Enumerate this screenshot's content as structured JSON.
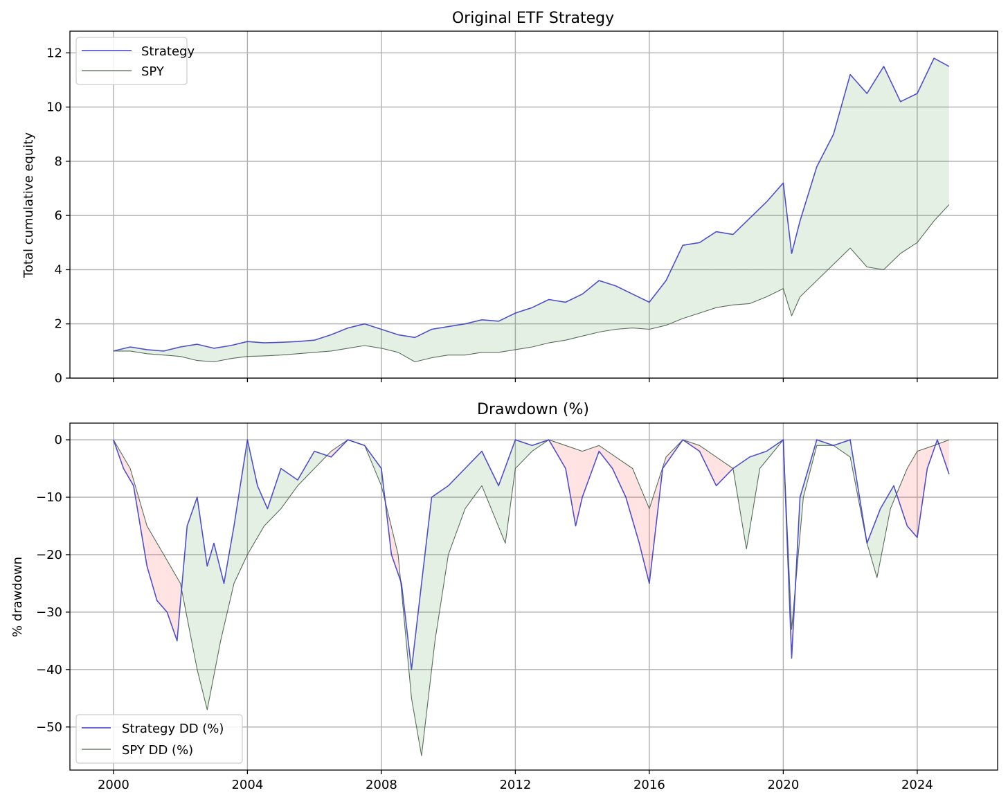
{
  "chart_data": [
    {
      "type": "line",
      "title": "Original ETF Strategy",
      "xlabel": "",
      "ylabel": "Total cumulative equity",
      "xlim": [
        1998.7,
        2026.4
      ],
      "ylim": [
        0,
        12.8
      ],
      "x_ticks": [
        2000,
        2004,
        2008,
        2012,
        2016,
        2020,
        2024
      ],
      "y_ticks": [
        0,
        2,
        4,
        6,
        8,
        10,
        12
      ],
      "grid": true,
      "legend_position": "upper left",
      "fill_between": "Strategy vs SPY (green where Strategy above)",
      "series": [
        {
          "name": "Strategy",
          "color": "#3c3cc8",
          "points": [
            [
              2000,
              1.0
            ],
            [
              2000.5,
              1.15
            ],
            [
              2001,
              1.05
            ],
            [
              2001.5,
              1.0
            ],
            [
              2002,
              1.15
            ],
            [
              2002.5,
              1.25
            ],
            [
              2003,
              1.1
            ],
            [
              2003.5,
              1.2
            ],
            [
              2004,
              1.35
            ],
            [
              2004.5,
              1.3
            ],
            [
              2005,
              1.32
            ],
            [
              2005.5,
              1.35
            ],
            [
              2006,
              1.4
            ],
            [
              2006.5,
              1.6
            ],
            [
              2007,
              1.85
            ],
            [
              2007.5,
              2.0
            ],
            [
              2008,
              1.8
            ],
            [
              2008.5,
              1.6
            ],
            [
              2009,
              1.5
            ],
            [
              2009.5,
              1.8
            ],
            [
              2010,
              1.9
            ],
            [
              2010.5,
              2.0
            ],
            [
              2011,
              2.15
            ],
            [
              2011.5,
              2.1
            ],
            [
              2012,
              2.4
            ],
            [
              2012.5,
              2.6
            ],
            [
              2013,
              2.9
            ],
            [
              2013.5,
              2.8
            ],
            [
              2014,
              3.1
            ],
            [
              2014.5,
              3.6
            ],
            [
              2015,
              3.4
            ],
            [
              2015.5,
              3.1
            ],
            [
              2016,
              2.8
            ],
            [
              2016.5,
              3.6
            ],
            [
              2017,
              4.9
            ],
            [
              2017.5,
              5.0
            ],
            [
              2018,
              5.4
            ],
            [
              2018.5,
              5.3
            ],
            [
              2019,
              5.9
            ],
            [
              2019.5,
              6.5
            ],
            [
              2020,
              7.2
            ],
            [
              2020.25,
              4.6
            ],
            [
              2020.5,
              5.8
            ],
            [
              2021,
              7.8
            ],
            [
              2021.5,
              9.0
            ],
            [
              2022,
              11.2
            ],
            [
              2022.5,
              10.5
            ],
            [
              2023,
              11.5
            ],
            [
              2023.5,
              10.2
            ],
            [
              2024,
              10.5
            ],
            [
              2024.5,
              11.8
            ],
            [
              2024.95,
              11.5
            ]
          ]
        },
        {
          "name": "SPY",
          "color": "#4d6650",
          "points": [
            [
              2000,
              1.0
            ],
            [
              2000.5,
              1.0
            ],
            [
              2001,
              0.9
            ],
            [
              2001.5,
              0.85
            ],
            [
              2002,
              0.8
            ],
            [
              2002.5,
              0.65
            ],
            [
              2003,
              0.6
            ],
            [
              2003.5,
              0.72
            ],
            [
              2004,
              0.8
            ],
            [
              2004.5,
              0.82
            ],
            [
              2005,
              0.85
            ],
            [
              2005.5,
              0.9
            ],
            [
              2006,
              0.95
            ],
            [
              2006.5,
              1.0
            ],
            [
              2007,
              1.1
            ],
            [
              2007.5,
              1.2
            ],
            [
              2008,
              1.1
            ],
            [
              2008.5,
              0.95
            ],
            [
              2009,
              0.6
            ],
            [
              2009.5,
              0.75
            ],
            [
              2010,
              0.85
            ],
            [
              2010.5,
              0.85
            ],
            [
              2011,
              0.95
            ],
            [
              2011.5,
              0.95
            ],
            [
              2012,
              1.05
            ],
            [
              2012.5,
              1.15
            ],
            [
              2013,
              1.3
            ],
            [
              2013.5,
              1.4
            ],
            [
              2014,
              1.55
            ],
            [
              2014.5,
              1.7
            ],
            [
              2015,
              1.8
            ],
            [
              2015.5,
              1.85
            ],
            [
              2016,
              1.8
            ],
            [
              2016.5,
              1.95
            ],
            [
              2017,
              2.2
            ],
            [
              2017.5,
              2.4
            ],
            [
              2018,
              2.6
            ],
            [
              2018.5,
              2.7
            ],
            [
              2019,
              2.75
            ],
            [
              2019.5,
              3.0
            ],
            [
              2020,
              3.3
            ],
            [
              2020.25,
              2.3
            ],
            [
              2020.5,
              3.0
            ],
            [
              2021,
              3.6
            ],
            [
              2021.5,
              4.2
            ],
            [
              2022,
              4.8
            ],
            [
              2022.5,
              4.1
            ],
            [
              2023,
              4.0
            ],
            [
              2023.5,
              4.6
            ],
            [
              2024,
              5.0
            ],
            [
              2024.5,
              5.8
            ],
            [
              2024.95,
              6.4
            ]
          ]
        }
      ]
    },
    {
      "type": "line",
      "title": "Drawdown (%)",
      "xlabel": "",
      "ylabel": "% drawdown",
      "xlim": [
        1998.7,
        2026.4
      ],
      "ylim": [
        -57.5,
        2.9
      ],
      "x_ticks": [
        2000,
        2004,
        2008,
        2012,
        2016,
        2020,
        2024
      ],
      "y_ticks": [
        0,
        -10,
        -20,
        -30,
        -40,
        -50
      ],
      "grid": true,
      "legend_position": "lower left",
      "fill_between": "Strategy DD vs SPY DD (green where Strategy above, red where below)",
      "series": [
        {
          "name": "Strategy DD (%)",
          "color": "#3c3cc8",
          "points": [
            [
              2000,
              0
            ],
            [
              2000.3,
              -5
            ],
            [
              2000.6,
              -8
            ],
            [
              2001,
              -22
            ],
            [
              2001.3,
              -28
            ],
            [
              2001.6,
              -30
            ],
            [
              2001.9,
              -35
            ],
            [
              2002.2,
              -15
            ],
            [
              2002.5,
              -10
            ],
            [
              2002.8,
              -22
            ],
            [
              2003,
              -18
            ],
            [
              2003.3,
              -25
            ],
            [
              2003.6,
              -15
            ],
            [
              2004,
              0
            ],
            [
              2004.3,
              -8
            ],
            [
              2004.6,
              -12
            ],
            [
              2005,
              -5
            ],
            [
              2005.5,
              -7
            ],
            [
              2006,
              -2
            ],
            [
              2006.5,
              -3
            ],
            [
              2007,
              0
            ],
            [
              2007.5,
              -1
            ],
            [
              2008,
              -5
            ],
            [
              2008.3,
              -20
            ],
            [
              2008.6,
              -25
            ],
            [
              2008.9,
              -40
            ],
            [
              2009.2,
              -25
            ],
            [
              2009.5,
              -10
            ],
            [
              2010,
              -8
            ],
            [
              2010.5,
              -5
            ],
            [
              2011,
              -2
            ],
            [
              2011.5,
              -8
            ],
            [
              2012,
              0
            ],
            [
              2012.5,
              -1
            ],
            [
              2013,
              0
            ],
            [
              2013.5,
              -5
            ],
            [
              2013.8,
              -15
            ],
            [
              2014,
              -10
            ],
            [
              2014.5,
              -2
            ],
            [
              2014.9,
              -5
            ],
            [
              2015.3,
              -10
            ],
            [
              2015.7,
              -18
            ],
            [
              2016,
              -25
            ],
            [
              2016.4,
              -5
            ],
            [
              2017,
              0
            ],
            [
              2017.5,
              -2
            ],
            [
              2018,
              -8
            ],
            [
              2018.5,
              -5
            ],
            [
              2019,
              -3
            ],
            [
              2019.5,
              -2
            ],
            [
              2020,
              0
            ],
            [
              2020.25,
              -38
            ],
            [
              2020.5,
              -10
            ],
            [
              2021,
              0
            ],
            [
              2021.5,
              -1
            ],
            [
              2022,
              0
            ],
            [
              2022.5,
              -18
            ],
            [
              2022.9,
              -12
            ],
            [
              2023.3,
              -8
            ],
            [
              2023.7,
              -15
            ],
            [
              2024,
              -17
            ],
            [
              2024.3,
              -5
            ],
            [
              2024.6,
              0
            ],
            [
              2024.95,
              -6
            ]
          ]
        },
        {
          "name": "SPY DD (%)",
          "color": "#4d6650",
          "points": [
            [
              2000,
              0
            ],
            [
              2000.5,
              -5
            ],
            [
              2001,
              -15
            ],
            [
              2001.5,
              -20
            ],
            [
              2002,
              -25
            ],
            [
              2002.5,
              -40
            ],
            [
              2002.8,
              -47
            ],
            [
              2003.2,
              -35
            ],
            [
              2003.6,
              -25
            ],
            [
              2004,
              -20
            ],
            [
              2004.5,
              -15
            ],
            [
              2005,
              -12
            ],
            [
              2005.5,
              -8
            ],
            [
              2006,
              -5
            ],
            [
              2006.5,
              -2
            ],
            [
              2007,
              0
            ],
            [
              2007.5,
              -1
            ],
            [
              2008,
              -8
            ],
            [
              2008.5,
              -20
            ],
            [
              2008.9,
              -45
            ],
            [
              2009.2,
              -55
            ],
            [
              2009.6,
              -35
            ],
            [
              2010,
              -20
            ],
            [
              2010.5,
              -12
            ],
            [
              2011,
              -8
            ],
            [
              2011.7,
              -18
            ],
            [
              2012,
              -5
            ],
            [
              2012.5,
              -2
            ],
            [
              2013,
              0
            ],
            [
              2013.5,
              -1
            ],
            [
              2014,
              -2
            ],
            [
              2014.5,
              -1
            ],
            [
              2015,
              -3
            ],
            [
              2015.5,
              -5
            ],
            [
              2016,
              -12
            ],
            [
              2016.5,
              -3
            ],
            [
              2017,
              0
            ],
            [
              2017.5,
              -1
            ],
            [
              2018,
              -3
            ],
            [
              2018.5,
              -5
            ],
            [
              2018.9,
              -19
            ],
            [
              2019.3,
              -5
            ],
            [
              2020,
              0
            ],
            [
              2020.25,
              -33
            ],
            [
              2020.6,
              -10
            ],
            [
              2021,
              -1
            ],
            [
              2021.5,
              -1
            ],
            [
              2022,
              -3
            ],
            [
              2022.5,
              -18
            ],
            [
              2022.8,
              -24
            ],
            [
              2023.2,
              -12
            ],
            [
              2023.7,
              -5
            ],
            [
              2024,
              -2
            ],
            [
              2024.5,
              -1
            ],
            [
              2024.95,
              0
            ]
          ]
        }
      ]
    }
  ]
}
